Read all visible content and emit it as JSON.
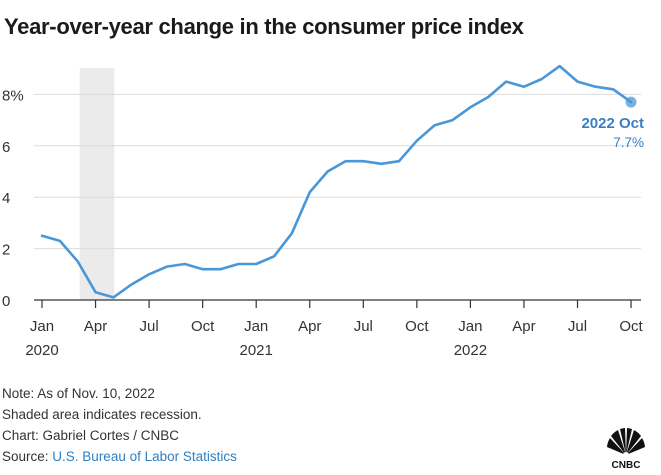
{
  "chart_data": {
    "type": "line",
    "title": "Year-over-year change in the consumer price index",
    "xlabel": "",
    "ylabel": "",
    "ylim": [
      0,
      9.6
    ],
    "y_ticks": [
      0,
      2,
      4,
      6,
      8
    ],
    "y_tick_labels": [
      "0",
      "2",
      "4",
      "6",
      "8%"
    ],
    "x_ticks": [
      {
        "index": 0,
        "label": "Jan",
        "year": "2020"
      },
      {
        "index": 3,
        "label": "Apr",
        "year": ""
      },
      {
        "index": 6,
        "label": "Jul",
        "year": ""
      },
      {
        "index": 9,
        "label": "Oct",
        "year": ""
      },
      {
        "index": 12,
        "label": "Jan",
        "year": "2021"
      },
      {
        "index": 15,
        "label": "Apr",
        "year": ""
      },
      {
        "index": 18,
        "label": "Jul",
        "year": ""
      },
      {
        "index": 21,
        "label": "Oct",
        "year": ""
      },
      {
        "index": 24,
        "label": "Jan",
        "year": "2022"
      },
      {
        "index": 27,
        "label": "Apr",
        "year": ""
      },
      {
        "index": 30,
        "label": "Jul",
        "year": ""
      },
      {
        "index": 33,
        "label": "Oct",
        "year": ""
      }
    ],
    "series": [
      {
        "name": "CPI year-over-year change",
        "color": "#4a97d8",
        "values": [
          2.5,
          2.3,
          1.5,
          0.3,
          0.1,
          0.6,
          1.0,
          1.3,
          1.4,
          1.2,
          1.2,
          1.4,
          1.4,
          1.7,
          2.6,
          4.2,
          5.0,
          5.4,
          5.4,
          5.3,
          5.4,
          6.2,
          6.8,
          7.0,
          7.5,
          7.9,
          8.5,
          8.3,
          8.6,
          9.1,
          8.5,
          8.3,
          8.2,
          7.7
        ]
      }
    ],
    "recession_shading": {
      "start_index": 2,
      "end_index": 4,
      "color": "#ebebeb"
    },
    "annotation": {
      "index": 33,
      "label": "2022 Oct",
      "value_text": "7.7%"
    },
    "grid": true
  },
  "notes": {
    "line1": "Note: As of Nov. 10, 2022",
    "line2": "Shaded area indicates recession.",
    "credit": "Chart: Gabriel Cortes / CNBC",
    "source_prefix": "Source:",
    "source_link": "U.S. Bureau of Labor Statistics"
  },
  "logo": {
    "name": "CNBC",
    "text": "CNBC"
  }
}
